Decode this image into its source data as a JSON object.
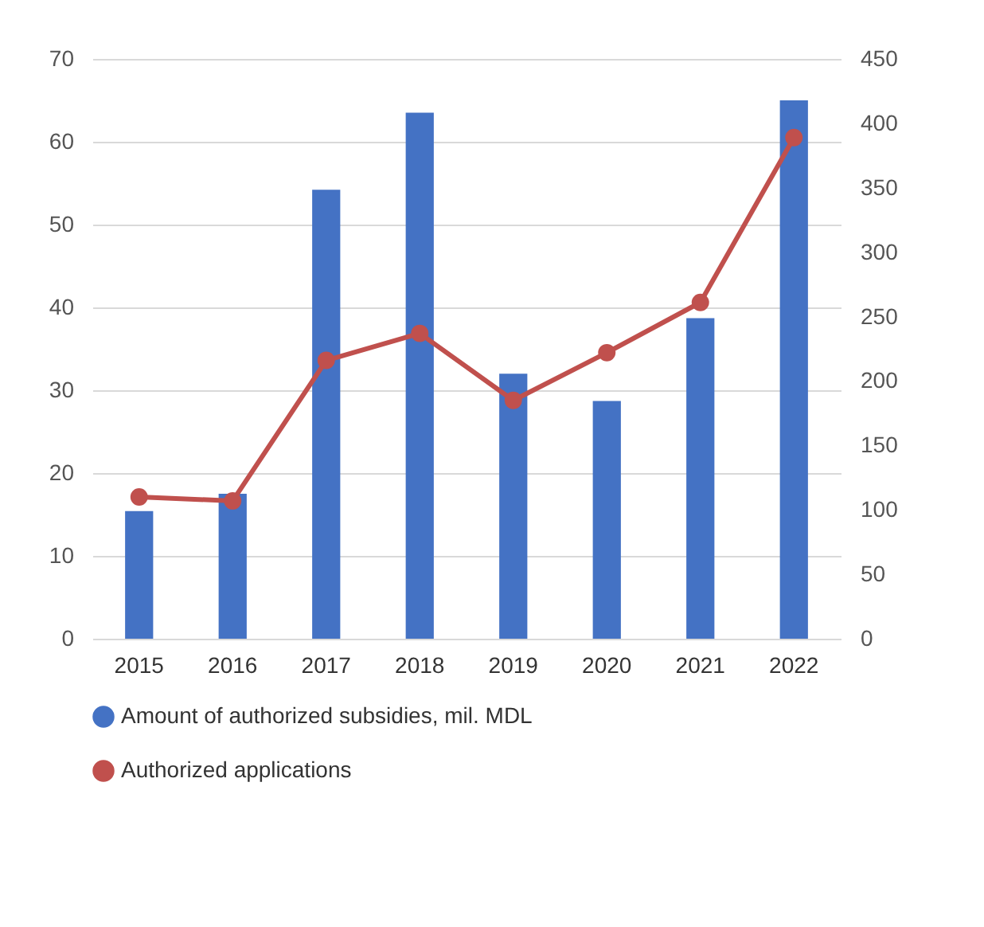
{
  "chart_data": {
    "type": "bar",
    "categories": [
      "2015",
      "2016",
      "2017",
      "2018",
      "2019",
      "2020",
      "2021",
      "2022"
    ],
    "series": [
      {
        "name": "Amount of authorized subsidies, mil. MDL",
        "color": "#4472c4",
        "values": [
          15.4,
          17.5,
          54.2,
          63.5,
          32,
          28.7,
          38.7,
          65
        ]
      },
      {
        "name": "Authorized applications",
        "type": "line",
        "axis": "y2",
        "color": "#c0504d",
        "values": [
          110,
          107,
          216,
          237,
          185,
          222,
          261,
          389
        ]
      }
    ],
    "ylim": [
      0,
      70
    ],
    "yticks": [
      0,
      10,
      20,
      30,
      40,
      50,
      60,
      70
    ],
    "y2lim": [
      0,
      450
    ],
    "y2ticks": [
      0,
      50,
      100,
      150,
      200,
      250,
      300,
      350,
      400,
      450
    ],
    "grid": "y",
    "legend": "bottom",
    "marker": "circle",
    "line_style": "solid"
  }
}
